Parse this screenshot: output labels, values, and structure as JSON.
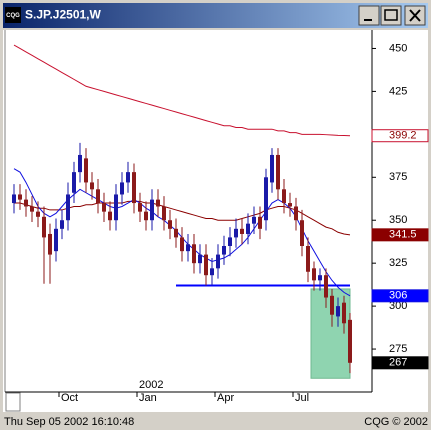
{
  "window": {
    "icon": "CQG",
    "title": "S.JP.J2501,W"
  },
  "status": {
    "left": "Thu Sep 05 2002 16:10:48",
    "right": "CQG © 2002"
  },
  "chart_data": {
    "type": "candlestick",
    "categories": [
      null,
      null,
      null,
      null,
      null,
      null,
      null,
      null,
      "Oct",
      null,
      null,
      null,
      null,
      null,
      null,
      null,
      null,
      null,
      null,
      null,
      null,
      "Jan",
      null,
      null,
      null,
      null,
      null,
      null,
      null,
      null,
      null,
      null,
      null,
      null,
      "Apr",
      null,
      null,
      null,
      null,
      null,
      null,
      null,
      null,
      null,
      null,
      null,
      null,
      "Jul",
      null,
      null,
      null,
      null,
      null,
      null,
      null,
      null,
      null
    ],
    "year_label": {
      "value": 21,
      "label": "2002"
    },
    "open": [
      360,
      365,
      362,
      358,
      355,
      352,
      342,
      332,
      345,
      350,
      366,
      378,
      386,
      372,
      368,
      360,
      355,
      350,
      365,
      372,
      378,
      360,
      355,
      350,
      362,
      358,
      350,
      345,
      340,
      332,
      336,
      325,
      330,
      318,
      322,
      330,
      335,
      340,
      345,
      342,
      348,
      352,
      350,
      372,
      388,
      368,
      360,
      358,
      350,
      335,
      322,
      315,
      318,
      306,
      294,
      302,
      292
    ],
    "high": [
      371,
      371,
      368,
      364,
      361,
      358,
      348,
      351,
      356,
      372,
      384,
      395,
      392,
      378,
      374,
      366,
      361,
      371,
      378,
      384,
      383,
      366,
      361,
      368,
      368,
      364,
      356,
      351,
      346,
      342,
      342,
      336,
      336,
      328,
      336,
      341,
      346,
      351,
      351,
      354,
      358,
      358,
      380,
      392,
      392,
      374,
      366,
      363,
      356,
      340,
      326,
      322,
      322,
      310,
      305,
      306,
      296
    ],
    "low": [
      354,
      356,
      352,
      349,
      346,
      313,
      313,
      326,
      339,
      344,
      360,
      372,
      366,
      362,
      354,
      349,
      344,
      344,
      359,
      366,
      354,
      349,
      344,
      344,
      352,
      344,
      339,
      334,
      326,
      326,
      319,
      319,
      312,
      312,
      316,
      324,
      329,
      334,
      336,
      336,
      342,
      339,
      344,
      366,
      362,
      354,
      352,
      344,
      329,
      314,
      309,
      309,
      299,
      288,
      288,
      284,
      261
    ],
    "close": [
      365,
      362,
      358,
      355,
      352,
      340,
      330,
      345,
      350,
      365,
      378,
      388,
      372,
      368,
      360,
      355,
      350,
      365,
      372,
      378,
      360,
      355,
      350,
      362,
      358,
      350,
      345,
      340,
      332,
      336,
      325,
      330,
      318,
      322,
      330,
      335,
      340,
      345,
      342,
      348,
      352,
      345,
      375,
      388,
      368,
      360,
      358,
      350,
      335,
      320,
      315,
      318,
      305,
      295,
      300,
      290,
      267
    ],
    "up_color": "#1a1aa8",
    "down_color": "#8b1a1a",
    "close_label_color": "#000000",
    "series": [
      {
        "color": "#c8102e",
        "label_fill": "#ffffff",
        "label_text": "#8b0000",
        "values": [
          452,
          450,
          448,
          446,
          444,
          442,
          440,
          438,
          436,
          434,
          432,
          430,
          428,
          427,
          426,
          425,
          424,
          423,
          422,
          421,
          420,
          419,
          418,
          417,
          416,
          415,
          414,
          413,
          412,
          411,
          410,
          409,
          408,
          407,
          406,
          405,
          405,
          404,
          404,
          403,
          403,
          403,
          403,
          403,
          402,
          402,
          401,
          401,
          400,
          400,
          400,
          400,
          399.8,
          399.6,
          399.4,
          399.3,
          399.2
        ]
      },
      {
        "color": "#8b0000",
        "label_fill": "#8b0000",
        "label_text": "#ffffff",
        "values": [
          360,
          360,
          359,
          358,
          357,
          357,
          356,
          356,
          356,
          357,
          358,
          358,
          359,
          359,
          360,
          360,
          360,
          360,
          360,
          361,
          361,
          361,
          360,
          360,
          359,
          358,
          357,
          356,
          355,
          354,
          353,
          352,
          351,
          351,
          350,
          350,
          350,
          350,
          351,
          352,
          353,
          354,
          356,
          357,
          358,
          358,
          357,
          356,
          354,
          352,
          350,
          348,
          346,
          345,
          343,
          342,
          341.5
        ]
      },
      {
        "color": "#1010e0",
        "label_fill": "#0000ff",
        "label_text": "#ffffff",
        "values": [
          380,
          378,
          372,
          365,
          358,
          354,
          352,
          354,
          358,
          362,
          365,
          368,
          366,
          364,
          362,
          360,
          358,
          357,
          358,
          360,
          362,
          360,
          357,
          355,
          352,
          350,
          347,
          344,
          340,
          336,
          333,
          330,
          328,
          326,
          327,
          328,
          330,
          333,
          336,
          340,
          345,
          350,
          355,
          360,
          362,
          360,
          357,
          352,
          345,
          338,
          332,
          326,
          320,
          315,
          311,
          308,
          306
        ]
      }
    ],
    "hline": {
      "value": 312,
      "from": 27,
      "to": 56,
      "color": "#0000ff"
    },
    "highlight": {
      "from": 50,
      "to": 56,
      "ylim": [
        258,
        310
      ],
      "color": "#8fd4b0"
    },
    "ylim": [
      250,
      459
    ],
    "yticks": [
      275,
      300,
      325,
      350,
      375,
      425,
      450
    ]
  }
}
